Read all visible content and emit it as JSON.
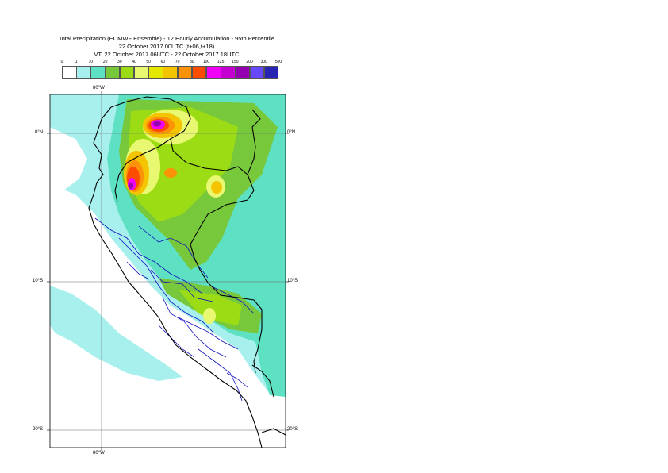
{
  "title": {
    "line1": "Total Precipitation (ECMWF Ensemble) - 12 Hourly Accumulation - 95th Percentile",
    "line2": "22 October 2017 00UTC (t+06,t+18)",
    "line3": "VT: 22 October 2017 06UTC - 22 October 2017 18UTC"
  },
  "legend": {
    "labels": [
      "0",
      "1",
      "10",
      "20",
      "30",
      "40",
      "50",
      "60",
      "70",
      "80",
      "100",
      "125",
      "150",
      "200",
      "300",
      "500"
    ],
    "colors": [
      "#ffffff",
      "#a8f0ee",
      "#5ee0c2",
      "#78c83c",
      "#9cdc14",
      "#e8f870",
      "#e4e800",
      "#f4c400",
      "#fc9208",
      "#fc4c00",
      "#f000f4",
      "#c400d0",
      "#9400b0",
      "#6848fc",
      "#2824b4",
      "#0c0860"
    ]
  },
  "axes": {
    "lon_label_top": "80°W",
    "lon_label_bottom": "80°W",
    "lat_labels": [
      "0°N",
      "10°S",
      "20°S"
    ]
  },
  "colors": {
    "frame": "#000000",
    "grid": "#6a6a6a",
    "country_border": "#000000",
    "region_border": "#1010c0"
  }
}
